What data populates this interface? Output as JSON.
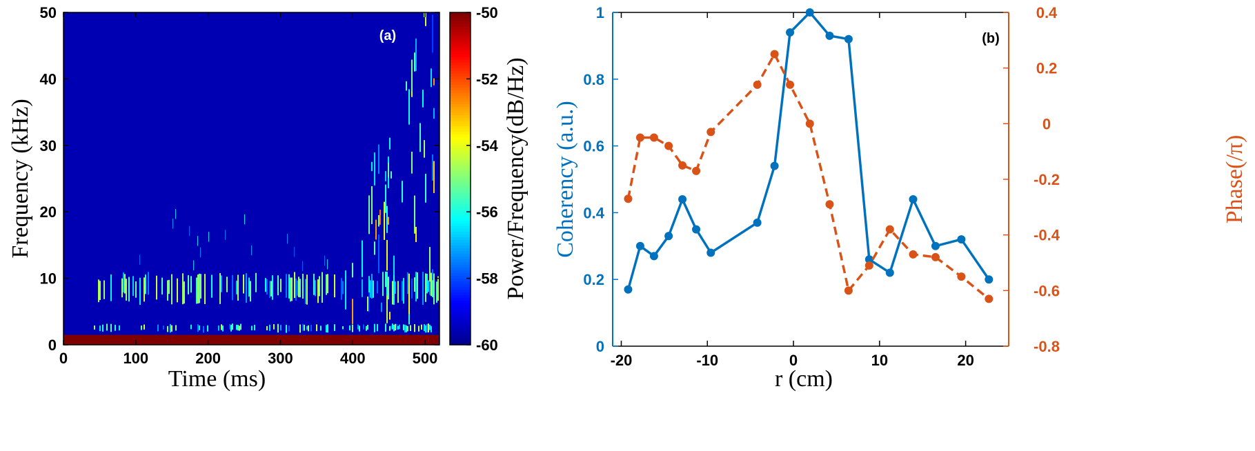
{
  "chart_data": [
    {
      "type": "heatmap",
      "panel_label": "(a)",
      "xlabel": "Time (ms)",
      "ylabel": "Frequency (kHz)",
      "xlim": [
        0,
        520
      ],
      "ylim": [
        0,
        50
      ],
      "xticks": [
        0,
        100,
        200,
        300,
        400,
        500
      ],
      "yticks": [
        0,
        10,
        20,
        30,
        40,
        50
      ],
      "colorbar": {
        "label": "Power/Frequency(dB/Hz)",
        "range": [
          -60,
          -50
        ],
        "ticks": [
          -50,
          -52,
          -54,
          -56,
          -58,
          -60
        ],
        "colormap": [
          "#00008f",
          "#0000ff",
          "#007fff",
          "#00ffff",
          "#7fff7f",
          "#ffff00",
          "#ff7f00",
          "#ff0000",
          "#7f0000"
        ]
      },
      "background_db": -59.6,
      "features": [
        {
          "name": "low-frequency band",
          "freq_khz": [
            0,
            1.5
          ],
          "time_ms": [
            0,
            520
          ],
          "level_db": -50
        },
        {
          "name": "~2.5 kHz band",
          "freq_khz": [
            1.8,
            3.2
          ],
          "time_ms": [
            30,
            515
          ],
          "level_db": -56
        },
        {
          "name": "~8 kHz mode",
          "freq_khz": [
            6,
            11
          ],
          "time_ms": [
            45,
            520
          ],
          "level_db": -56
        },
        {
          "name": "broadband fluctuations",
          "freq_khz": [
            3,
            50
          ],
          "time_ms": [
            380,
            515
          ],
          "level_db": -57
        }
      ]
    },
    {
      "type": "line",
      "panel_label": "(b)",
      "xlabel": "r (cm)",
      "xlim": [
        -21,
        25
      ],
      "xticks": [
        -20,
        -10,
        0,
        10,
        20
      ],
      "y_left": {
        "label": "Coherency (a.u.)",
        "lim": [
          0,
          1
        ],
        "ticks": [
          "0",
          "0.2",
          "0.4",
          "0.6",
          "0.8",
          "1"
        ],
        "color": "#0072bd"
      },
      "y_right": {
        "label": "Phase(/π)",
        "lim": [
          -0.8,
          0.4
        ],
        "ticks": [
          "-0.8",
          "-0.6",
          "-0.4",
          "-0.2",
          "0",
          "0.2",
          "0.4"
        ],
        "color": "#d95319"
      },
      "series": [
        {
          "name": "Coherency",
          "axis": "left",
          "style": "solid",
          "color": "#0072bd",
          "x": [
            -19.2,
            -17.8,
            -16.2,
            -14.5,
            -12.9,
            -11.3,
            -9.6,
            -4.2,
            -2.2,
            -0.4,
            1.9,
            4.2,
            6.4,
            8.8,
            11.2,
            13.9,
            16.5,
            19.5,
            22.7
          ],
          "y": [
            0.17,
            0.3,
            0.27,
            0.33,
            0.44,
            0.35,
            0.28,
            0.37,
            0.54,
            0.94,
            1.0,
            0.93,
            0.92,
            0.26,
            0.22,
            0.44,
            0.3,
            0.32,
            0.2
          ]
        },
        {
          "name": "Phase",
          "axis": "right",
          "style": "dashed",
          "color": "#d95319",
          "x": [
            -19.2,
            -17.8,
            -16.2,
            -14.5,
            -12.9,
            -11.3,
            -9.6,
            -4.2,
            -2.2,
            -0.4,
            1.9,
            4.2,
            6.4,
            8.8,
            11.2,
            13.9,
            16.5,
            19.5,
            22.7
          ],
          "y": [
            -0.27,
            -0.05,
            -0.05,
            -0.08,
            -0.15,
            -0.17,
            -0.03,
            0.14,
            0.25,
            0.14,
            0.0,
            -0.29,
            -0.6,
            -0.51,
            -0.38,
            -0.47,
            -0.48,
            -0.55,
            -0.63
          ]
        }
      ]
    }
  ]
}
